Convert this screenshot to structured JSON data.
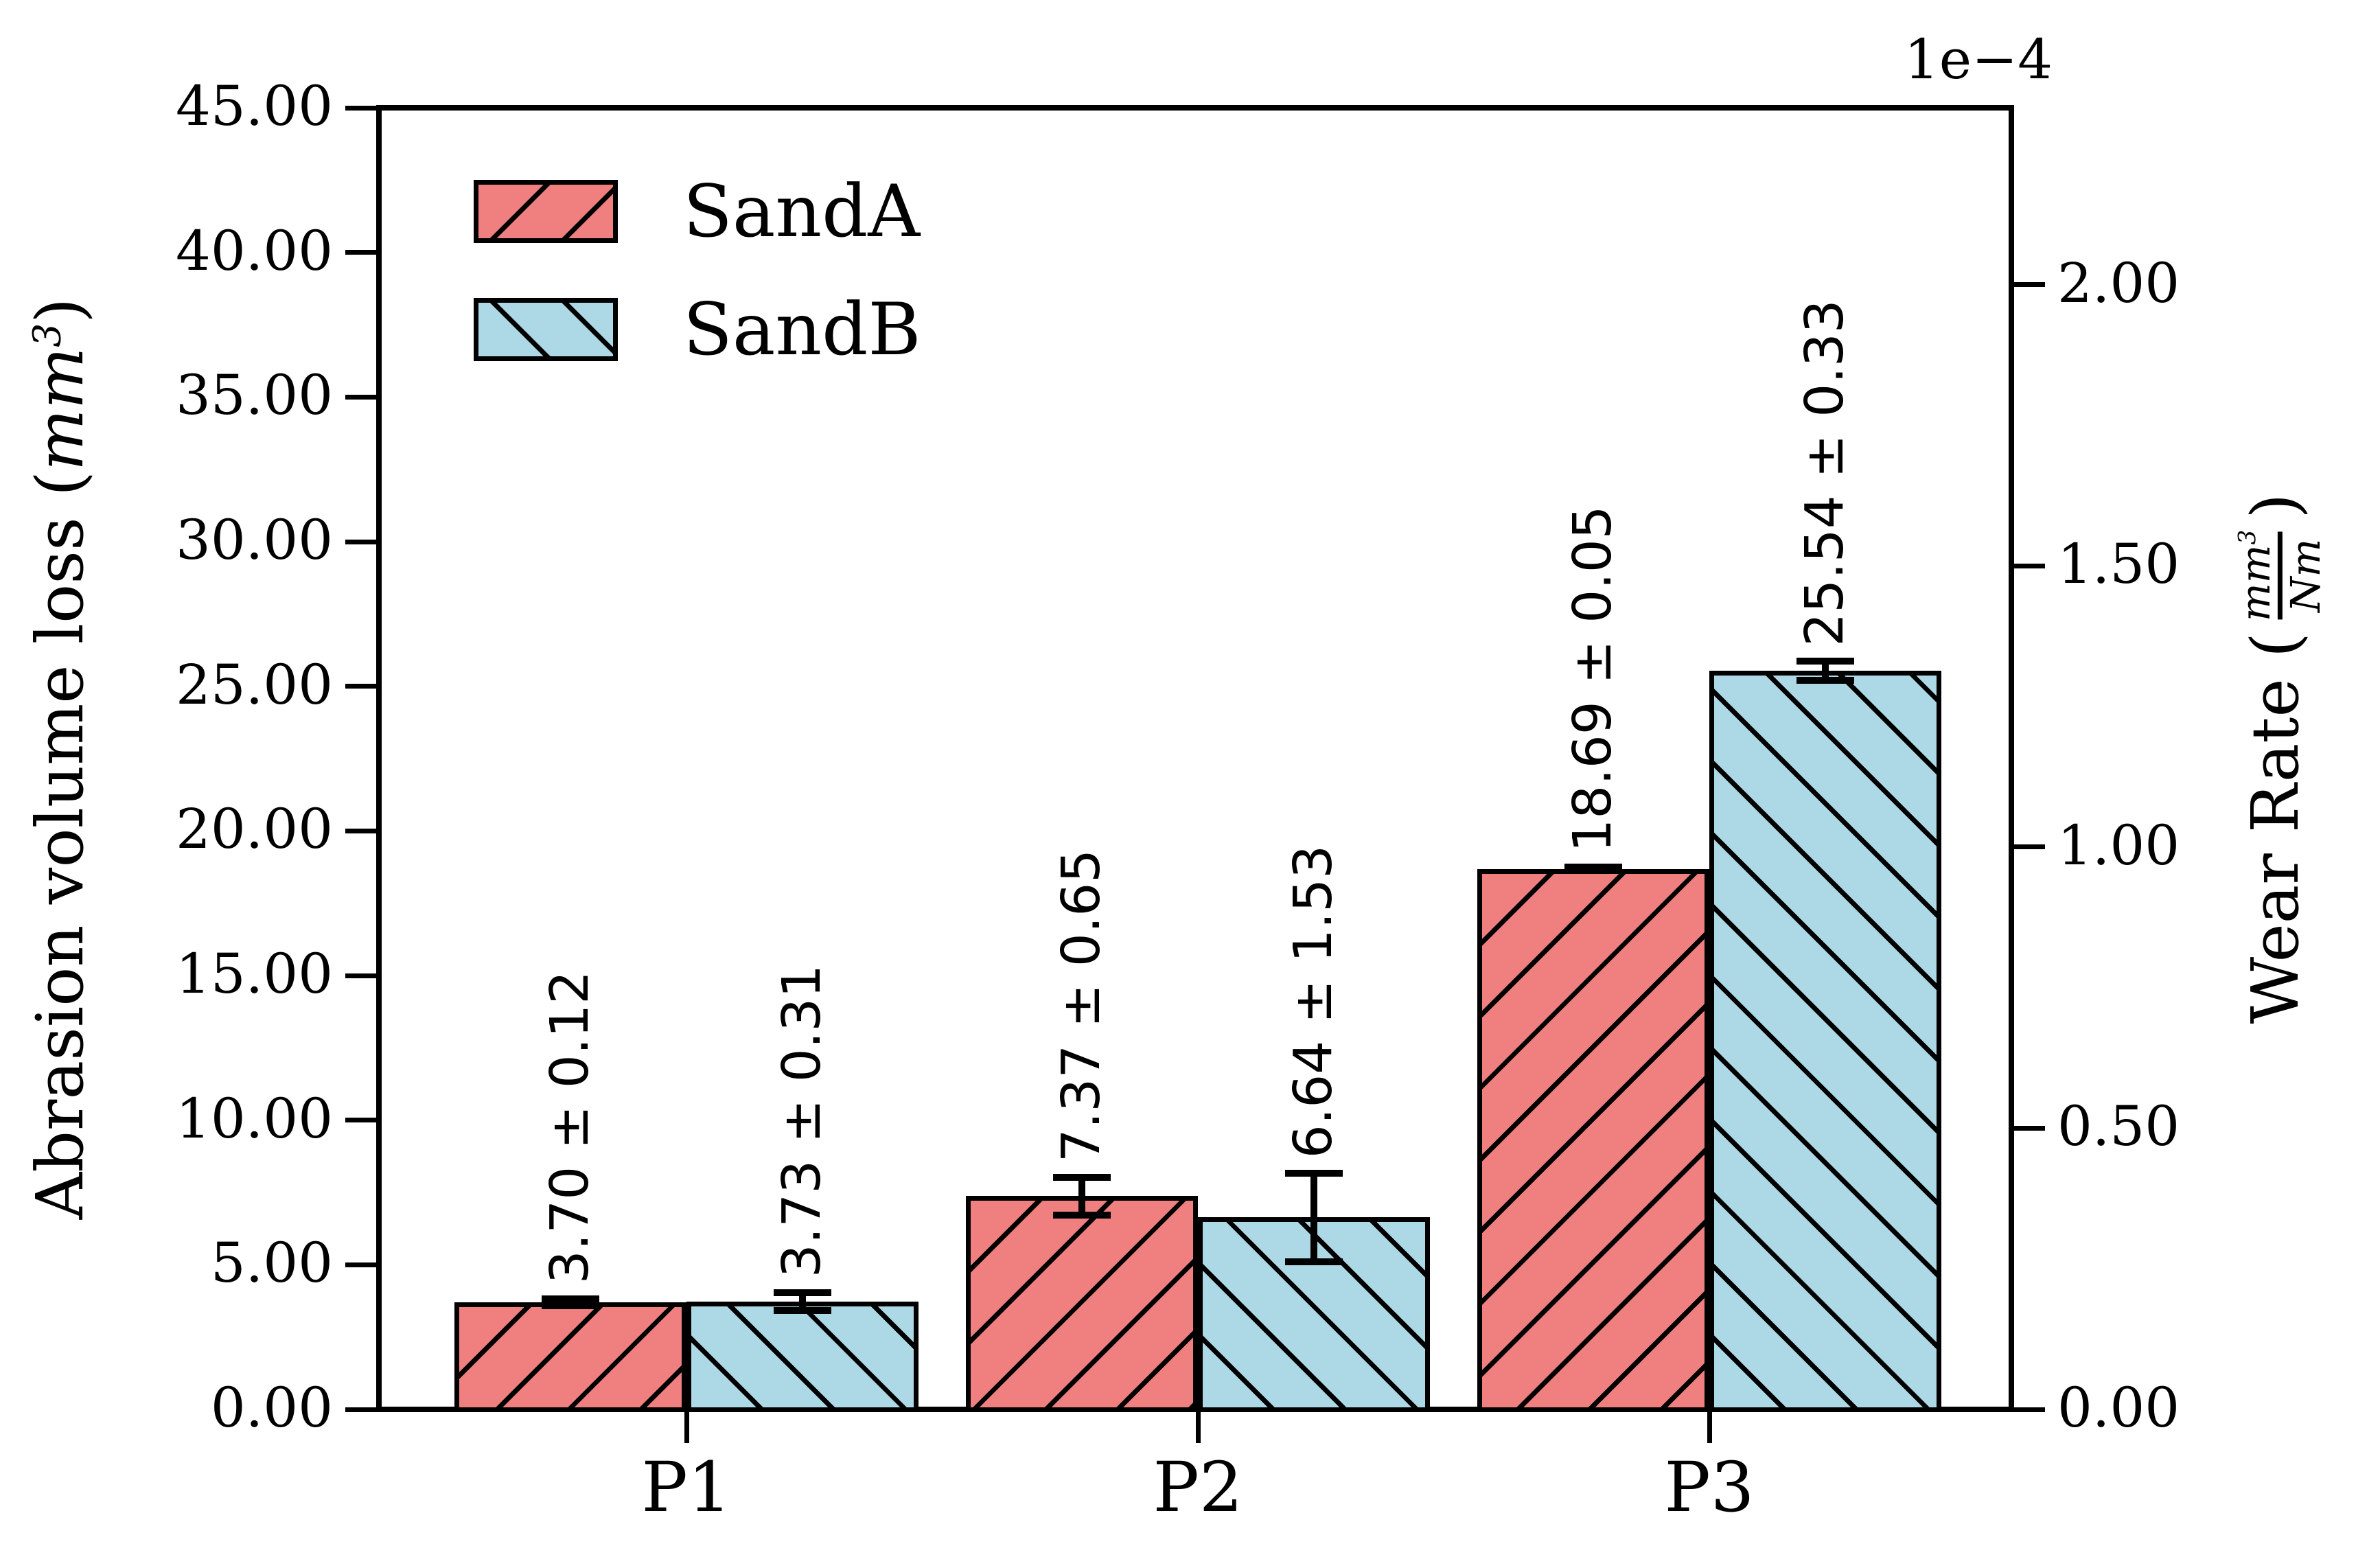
{
  "figure": {
    "background": "#ffffff"
  },
  "chart_data": {
    "type": "bar",
    "title": "",
    "categories": [
      "P1",
      "P2",
      "P3"
    ],
    "series": [
      {
        "name": "SandA",
        "fill": "#f08080",
        "hatch": "/",
        "values": [
          3.7,
          7.37,
          18.69
        ],
        "errors": [
          0.12,
          0.65,
          0.05
        ],
        "bar_labels": [
          "3.70 ± 0.12",
          "7.37 ± 0.65",
          "18.69 ± 0.05"
        ]
      },
      {
        "name": "SandB",
        "fill": "#add8e6",
        "hatch": "\\",
        "values": [
          3.73,
          6.64,
          25.54
        ],
        "errors": [
          0.31,
          1.53,
          0.33
        ],
        "bar_labels": [
          "3.73 ± 0.31",
          "6.64 ± 1.53",
          "25.54 ± 0.33"
        ]
      }
    ],
    "left_axis": {
      "title_prefix": "Abrasion volume loss (",
      "title_math": "mm",
      "title_sup": "3",
      "title_suffix": ")",
      "lim": [
        0,
        45
      ],
      "ticks": [
        {
          "label": "0.00",
          "value": 0
        },
        {
          "label": "5.00",
          "value": 5
        },
        {
          "label": "10.00",
          "value": 10
        },
        {
          "label": "15.00",
          "value": 15
        },
        {
          "label": "20.00",
          "value": 20
        },
        {
          "label": "25.00",
          "value": 25
        },
        {
          "label": "30.00",
          "value": 30
        },
        {
          "label": "35.00",
          "value": 35
        },
        {
          "label": "40.00",
          "value": 40
        },
        {
          "label": "45.00",
          "value": 45
        }
      ]
    },
    "right_axis": {
      "title_prefix": "Wear Rate (",
      "frac_numerator": "mm",
      "frac_numerator_sup": "3",
      "frac_denominator": "Nm",
      "title_suffix": ")",
      "offset_text": "1e−4",
      "lim": [
        0,
        2.315
      ],
      "ticks": [
        {
          "label": "0.00",
          "value": 0
        },
        {
          "label": "0.50",
          "value": 0.5
        },
        {
          "label": "1.00",
          "value": 1.0
        },
        {
          "label": "1.50",
          "value": 1.5
        },
        {
          "label": "2.00",
          "value": 2.0
        }
      ]
    },
    "legend": {
      "position": "upper left",
      "entries": [
        "SandA",
        "SandB"
      ]
    },
    "colors": {
      "edge": "#000000",
      "error_bar": "#000000",
      "text": "#000000"
    },
    "grid": false
  }
}
